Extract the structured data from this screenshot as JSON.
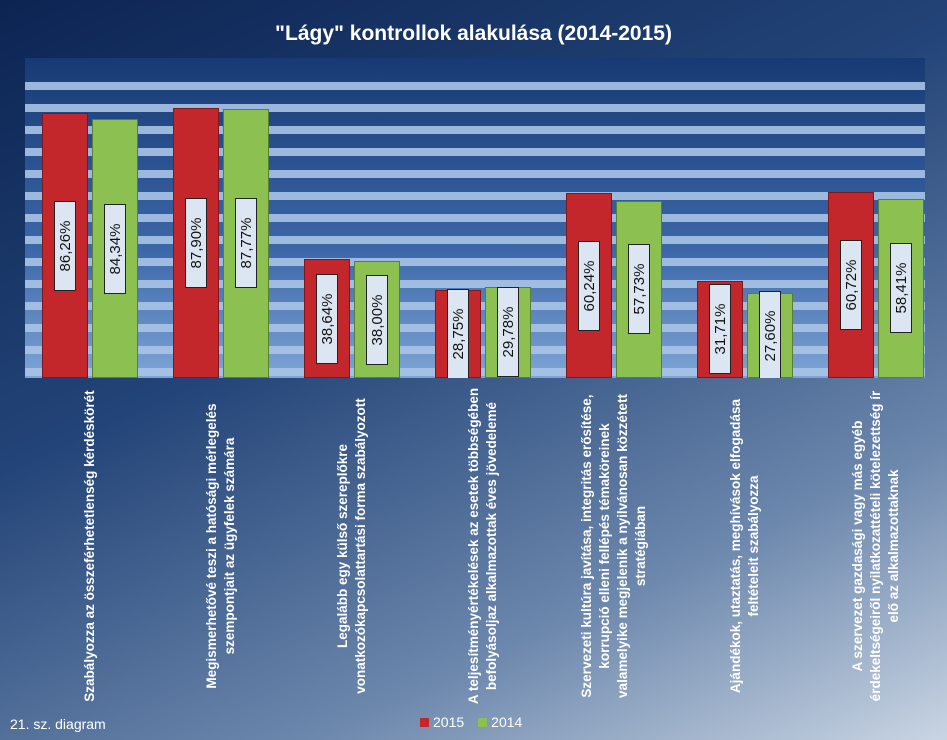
{
  "chart_data": {
    "type": "bar",
    "title": "\"Lágy\" kontrollok alakulása (2014-2015)",
    "footnote": "21. sz. diagram",
    "categories": [
      "Szabályozza az összeférhetetlenség kérdéskörét",
      "Megismerhetővé teszi a hatósági mérlegelés szempontjait az ügyfelek számára",
      "Legalább egy külső szereplőkre vonatkozókapcsolattartási forma szabályozott",
      "A teljesítményértékelések az esetek többségében befolyásoljaz alkalmazottak éves jövedelemé",
      "Szervezeti  kultúra javítása, integritás erősítése, korrupció elleni fellépés témaköreinek valamelyike megjelenik a nyilvánosan közzétett stratégiában",
      "Ajándékok, utaztatás, meghívások elfogadása feltételeit szabályozza",
      "A szervezet gazdasági vagy más egyéb érdekeltségeiről nyilatkozattételi kötelezettség ír elő az alkalmazottaknak"
    ],
    "series": [
      {
        "name": "2015",
        "color": "#c3262b",
        "values": [
          86.26,
          87.9,
          38.64,
          28.75,
          60.24,
          31.71,
          60.72
        ],
        "value_labels": [
          "86,26%",
          "87,90%",
          "38,64%",
          "28,75%",
          "60,24%",
          "31,71%",
          "60,72%"
        ]
      },
      {
        "name": "2014",
        "color": "#8cc152",
        "values": [
          84.34,
          87.77,
          38.0,
          29.78,
          57.73,
          27.6,
          58.41
        ],
        "value_labels": [
          "84,34%",
          "87,77%",
          "38,00%",
          "29,78%",
          "57,73%",
          "27,60%",
          "58,41%"
        ]
      }
    ],
    "ylim": [
      0,
      100
    ],
    "legend": "bottom"
  }
}
